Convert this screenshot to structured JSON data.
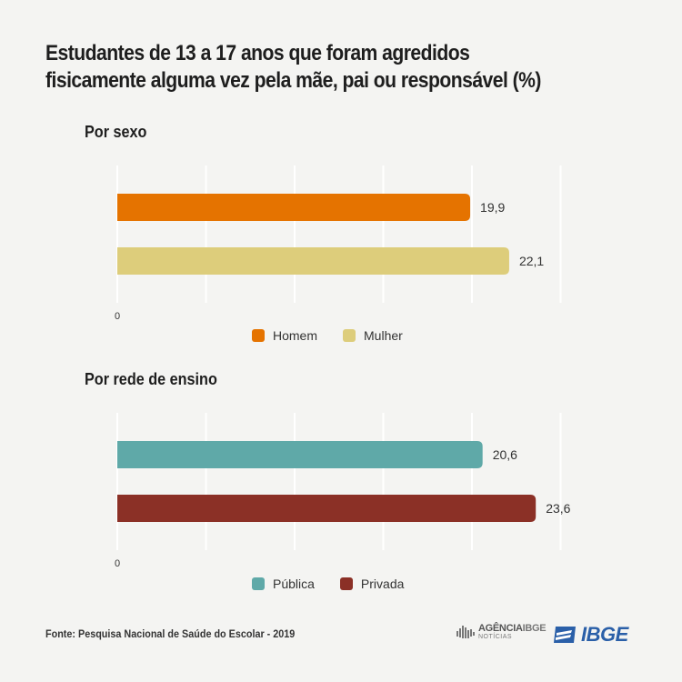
{
  "title_line1": "Estudantes de 13 a 17 anos que foram agredidos",
  "title_line2": "fisicamente alguma vez pela mãe, pai ou responsável (%)",
  "chart_data": [
    {
      "type": "bar",
      "orientation": "horizontal",
      "title": "Por sexo",
      "categories": [
        "Homem",
        "Mulher"
      ],
      "values": [
        19.9,
        22.1
      ],
      "value_labels": [
        "19,9",
        "22,1"
      ],
      "colors": [
        "#e57300",
        "#ddcd7b"
      ],
      "xlim": [
        0,
        25
      ],
      "grid_step": 5,
      "tick_label": "0",
      "legend": [
        {
          "label": "Homem",
          "color": "#e57300"
        },
        {
          "label": "Mulher",
          "color": "#ddcd7b"
        }
      ]
    },
    {
      "type": "bar",
      "orientation": "horizontal",
      "title": "Por rede de ensino",
      "categories": [
        "Pública",
        "Privada"
      ],
      "values": [
        20.6,
        23.6
      ],
      "value_labels": [
        "20,6",
        "23,6"
      ],
      "colors": [
        "#5fa9a8",
        "#8b3026"
      ],
      "xlim": [
        0,
        25
      ],
      "grid_step": 5,
      "tick_label": "0",
      "legend": [
        {
          "label": "Pública",
          "color": "#5fa9a8"
        },
        {
          "label": "Privada",
          "color": "#8b3026"
        }
      ]
    }
  ],
  "footer": {
    "source": "Fonte: Pesquisa Nacional de Saúde do Escolar - 2019",
    "agencia_prefix": "AGÊNCIA",
    "agencia_brand": "IBGE",
    "agencia_sub": "NOTÍCIAS",
    "logo": "IBGE"
  }
}
